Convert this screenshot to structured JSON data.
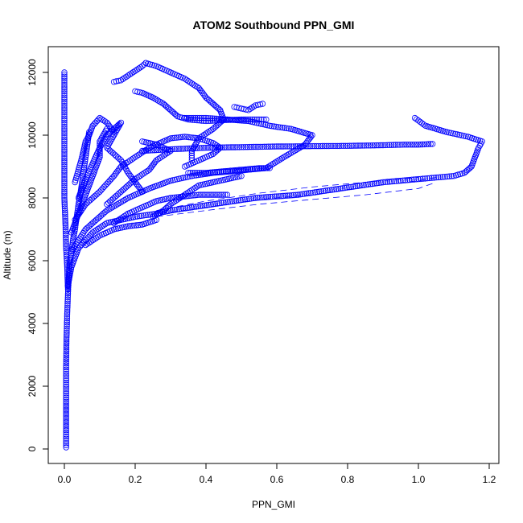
{
  "chart_data": {
    "type": "scatter",
    "title": "ATOM2 Southbound PPN_GMI",
    "xlabel": "PPN_GMI",
    "ylabel": "Altitude (m)",
    "xlim": [
      0,
      1.2
    ],
    "ylim": [
      0,
      12000
    ],
    "xticks": [
      "0.0",
      "0.2",
      "0.4",
      "0.6",
      "0.8",
      "1.0",
      "1.2"
    ],
    "xtick_values": [
      0,
      0.2,
      0.4,
      0.6,
      0.8,
      1.0,
      1.2
    ],
    "yticks": [
      "0",
      "2000",
      "4000",
      "6000",
      "8000",
      "10000",
      "12000"
    ],
    "ytick_values": [
      0,
      2000,
      4000,
      6000,
      8000,
      10000,
      12000
    ],
    "color": "#0000ff",
    "marker": "open-circle",
    "grid": false,
    "series": [
      {
        "values": [
          [
            0.005,
            50
          ],
          [
            0.005,
            600
          ],
          [
            0.005,
            1500
          ],
          [
            0.005,
            2600
          ],
          [
            0.006,
            3500
          ],
          [
            0.008,
            4300
          ],
          [
            0.01,
            4900
          ],
          [
            0.012,
            5400
          ],
          [
            0.015,
            5900
          ],
          [
            0.02,
            6300
          ],
          [
            0.025,
            6700
          ],
          [
            0.03,
            7000
          ],
          [
            0.035,
            7400
          ],
          [
            0.04,
            7800
          ],
          [
            0.045,
            8100
          ],
          [
            0.05,
            8500
          ],
          [
            0.055,
            8900
          ],
          [
            0.06,
            9300
          ],
          [
            0.065,
            9700
          ],
          [
            0.07,
            10100
          ]
        ]
      },
      {
        "values": [
          [
            0.0,
            12000
          ],
          [
            0.0,
            11200
          ],
          [
            0.0,
            10400
          ],
          [
            0.0,
            9600
          ],
          [
            0.0,
            8800
          ],
          [
            0.0,
            8000
          ],
          [
            0.003,
            7200
          ],
          [
            0.005,
            6400
          ],
          [
            0.008,
            5800
          ],
          [
            0.01,
            5100
          ]
        ]
      },
      {
        "values": [
          [
            0.01,
            5200
          ],
          [
            0.02,
            5800
          ],
          [
            0.04,
            6400
          ],
          [
            0.08,
            6900
          ],
          [
            0.12,
            7200
          ],
          [
            0.16,
            7300
          ],
          [
            0.2,
            7400
          ],
          [
            0.26,
            7500
          ],
          [
            0.3,
            7600
          ],
          [
            0.36,
            7700
          ],
          [
            0.42,
            7800
          ],
          [
            0.48,
            7900
          ],
          [
            0.54,
            8000
          ],
          [
            0.6,
            8050
          ],
          [
            0.66,
            8100
          ],
          [
            0.72,
            8200
          ],
          [
            0.78,
            8300
          ],
          [
            0.84,
            8400
          ],
          [
            0.9,
            8500
          ],
          [
            0.95,
            8550
          ],
          [
            1.0,
            8600
          ],
          [
            1.05,
            8650
          ],
          [
            1.1,
            8700
          ],
          [
            1.13,
            8800
          ],
          [
            1.15,
            9000
          ],
          [
            1.16,
            9300
          ],
          [
            1.17,
            9600
          ],
          [
            1.18,
            9800
          ],
          [
            1.14,
            9950
          ],
          [
            1.08,
            10100
          ],
          [
            1.02,
            10300
          ],
          [
            0.99,
            10550
          ]
        ]
      },
      {
        "values": [
          [
            0.02,
            6300
          ],
          [
            0.06,
            7000
          ],
          [
            0.12,
            7600
          ],
          [
            0.18,
            8000
          ],
          [
            0.24,
            8300
          ],
          [
            0.3,
            8550
          ],
          [
            0.36,
            8700
          ],
          [
            0.42,
            8800
          ],
          [
            0.48,
            8850
          ],
          [
            0.52,
            8900
          ],
          [
            0.57,
            8950
          ],
          [
            0.62,
            9300
          ],
          [
            0.68,
            9700
          ],
          [
            0.7,
            10000
          ],
          [
            0.64,
            10200
          ],
          [
            0.58,
            10300
          ],
          [
            0.52,
            10450
          ],
          [
            0.46,
            10500
          ],
          [
            0.4,
            10550
          ],
          [
            0.34,
            10550
          ]
        ]
      },
      {
        "values": [
          [
            0.22,
            9500
          ],
          [
            0.3,
            9550
          ],
          [
            0.4,
            9600
          ],
          [
            0.5,
            9620
          ],
          [
            0.6,
            9640
          ],
          [
            0.7,
            9650
          ],
          [
            0.8,
            9660
          ],
          [
            0.9,
            9680
          ],
          [
            0.96,
            9700
          ],
          [
            1.0,
            9700
          ],
          [
            1.04,
            9720
          ]
        ]
      },
      {
        "values": [
          [
            0.23,
            12300
          ],
          [
            0.26,
            12200
          ],
          [
            0.3,
            12000
          ],
          [
            0.34,
            11800
          ],
          [
            0.38,
            11500
          ],
          [
            0.4,
            11200
          ],
          [
            0.42,
            11000
          ],
          [
            0.44,
            10800
          ],
          [
            0.45,
            10500
          ],
          [
            0.42,
            10200
          ],
          [
            0.38,
            9900
          ],
          [
            0.36,
            9500
          ],
          [
            0.36,
            9200
          ]
        ]
      },
      {
        "values": [
          [
            0.14,
            11700
          ],
          [
            0.16,
            11750
          ],
          [
            0.18,
            11900
          ],
          [
            0.2,
            12050
          ],
          [
            0.22,
            12200
          ],
          [
            0.23,
            12300
          ]
        ]
      },
      {
        "values": [
          [
            0.2,
            11400
          ],
          [
            0.22,
            11350
          ],
          [
            0.25,
            11200
          ],
          [
            0.28,
            11000
          ],
          [
            0.3,
            10800
          ],
          [
            0.32,
            10600
          ],
          [
            0.35,
            10500
          ],
          [
            0.4,
            10450
          ],
          [
            0.45,
            10480
          ],
          [
            0.5,
            10500
          ],
          [
            0.55,
            10500
          ],
          [
            0.57,
            10500
          ]
        ]
      },
      {
        "values": [
          [
            0.35,
            8800
          ],
          [
            0.4,
            8800
          ],
          [
            0.45,
            8850
          ],
          [
            0.5,
            8900
          ],
          [
            0.55,
            8950
          ],
          [
            0.58,
            8950
          ]
        ]
      },
      {
        "values": [
          [
            0.03,
            7300
          ],
          [
            0.06,
            7800
          ],
          [
            0.1,
            8200
          ],
          [
            0.14,
            8700
          ],
          [
            0.16,
            9000
          ],
          [
            0.2,
            9300
          ],
          [
            0.24,
            9600
          ],
          [
            0.28,
            9800
          ],
          [
            0.3,
            9900
          ],
          [
            0.34,
            9950
          ],
          [
            0.38,
            9900
          ],
          [
            0.42,
            9750
          ],
          [
            0.44,
            9600
          ],
          [
            0.42,
            9400
          ],
          [
            0.38,
            9200
          ],
          [
            0.34,
            9000
          ]
        ]
      },
      {
        "values": [
          [
            0.04,
            8000
          ],
          [
            0.06,
            8600
          ],
          [
            0.08,
            9100
          ],
          [
            0.1,
            9600
          ],
          [
            0.12,
            10000
          ],
          [
            0.14,
            10200
          ],
          [
            0.16,
            10400
          ],
          [
            0.14,
            10000
          ],
          [
            0.12,
            9600
          ],
          [
            0.16,
            9200
          ],
          [
            0.18,
            8800
          ],
          [
            0.2,
            8500
          ],
          [
            0.22,
            8200
          ]
        ]
      },
      {
        "values": [
          [
            0.03,
            8500
          ],
          [
            0.05,
            9300
          ],
          [
            0.06,
            9800
          ],
          [
            0.07,
            10000
          ],
          [
            0.08,
            10300
          ],
          [
            0.1,
            10550
          ],
          [
            0.12,
            10400
          ],
          [
            0.14,
            10100
          ]
        ]
      },
      {
        "values": [
          [
            0.25,
            7400
          ],
          [
            0.28,
            7600
          ],
          [
            0.3,
            7800
          ],
          [
            0.34,
            8100
          ],
          [
            0.38,
            8400
          ],
          [
            0.42,
            8500
          ],
          [
            0.46,
            8600
          ],
          [
            0.5,
            8700
          ]
        ]
      },
      {
        "values": [
          [
            0.14,
            7200
          ],
          [
            0.18,
            7500
          ],
          [
            0.22,
            7700
          ],
          [
            0.26,
            7900
          ],
          [
            0.3,
            8000
          ],
          [
            0.34,
            8050
          ],
          [
            0.38,
            8100
          ],
          [
            0.42,
            8100
          ],
          [
            0.46,
            8100
          ]
        ]
      },
      {
        "values": [
          [
            0.48,
            10900
          ],
          [
            0.5,
            10850
          ],
          [
            0.52,
            10800
          ],
          [
            0.54,
            10950
          ],
          [
            0.56,
            11000
          ]
        ]
      },
      {
        "values": [
          [
            0.12,
            7800
          ],
          [
            0.16,
            8200
          ],
          [
            0.2,
            8600
          ],
          [
            0.24,
            8900
          ],
          [
            0.26,
            9200
          ],
          [
            0.3,
            9500
          ],
          [
            0.26,
            9700
          ],
          [
            0.22,
            9800
          ]
        ]
      },
      {
        "values": [
          [
            0.06,
            6500
          ],
          [
            0.1,
            6800
          ],
          [
            0.14,
            7000
          ],
          [
            0.18,
            7100
          ],
          [
            0.22,
            7150
          ],
          [
            0.26,
            7300
          ]
        ]
      },
      {
        "values": [
          [
            0.02,
            6900
          ],
          [
            0.04,
            7500
          ],
          [
            0.06,
            8100
          ],
          [
            0.08,
            8700
          ],
          [
            0.1,
            9300
          ],
          [
            0.1,
            9800
          ],
          [
            0.12,
            10200
          ]
        ]
      }
    ],
    "dashed_lines": [
      {
        "values": [
          [
            0.27,
            7500
          ],
          [
            0.4,
            7700
          ],
          [
            0.55,
            7950
          ],
          [
            0.7,
            8100
          ],
          [
            0.85,
            8350
          ],
          [
            1.0,
            8550
          ],
          [
            1.05,
            8650
          ]
        ]
      },
      {
        "values": [
          [
            0.26,
            7600
          ],
          [
            0.4,
            7900
          ],
          [
            0.55,
            8150
          ],
          [
            0.7,
            8350
          ],
          [
            0.85,
            8500
          ],
          [
            1.0,
            8650
          ]
        ]
      },
      {
        "values": [
          [
            0.26,
            7400
          ],
          [
            0.4,
            7600
          ],
          [
            0.55,
            7800
          ],
          [
            0.7,
            7950
          ],
          [
            0.85,
            8100
          ],
          [
            1.0,
            8300
          ],
          [
            1.05,
            8500
          ]
        ]
      }
    ]
  }
}
